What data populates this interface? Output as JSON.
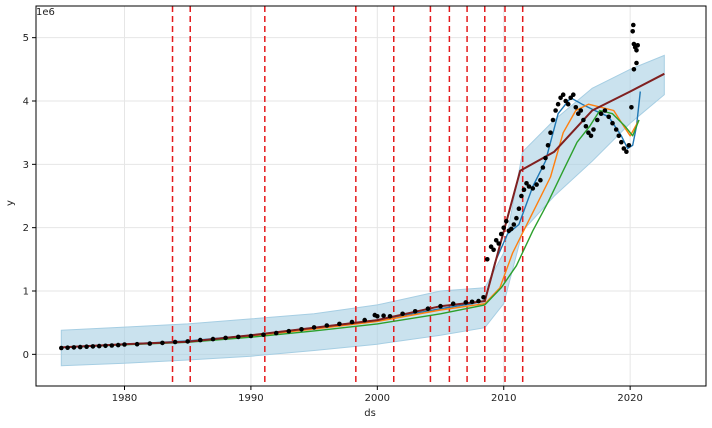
{
  "chart_data": {
    "type": "line",
    "title": "",
    "xlabel": "ds",
    "ylabel": "y",
    "y_offset_label": "1e6",
    "xlim": [
      1973.0,
      2026.0
    ],
    "ylim": [
      -500000,
      5500000
    ],
    "xticks": [
      1980,
      1990,
      2000,
      2010,
      2020
    ],
    "xtick_labels": [
      "1980",
      "1990",
      "2000",
      "2010",
      "2020"
    ],
    "yticks": [
      0,
      1000000,
      2000000,
      3000000,
      4000000,
      5000000
    ],
    "ytick_labels": [
      "0",
      "1",
      "2",
      "3",
      "4",
      "5"
    ],
    "grid": true,
    "changepoints": [
      1983.8,
      1985.2,
      1991.1,
      1998.3,
      2001.3,
      2004.2,
      2005.7,
      2007.1,
      2008.5,
      2010.1,
      2011.5
    ],
    "changepoint_color": "#e41a1c",
    "uncertainty_band": {
      "color": "#a6cee3",
      "x": [
        1975.0,
        1980,
        1985,
        1990,
        1995,
        2000,
        2005,
        2008.5,
        2010,
        2011.5,
        2014,
        2017,
        2020,
        2022.7
      ],
      "lower": [
        -180000,
        -140000,
        -90000,
        -30000,
        60000,
        160000,
        300000,
        420000,
        800000,
        1950000,
        2500000,
        3050000,
        3650000,
        4100000
      ],
      "upper": [
        380000,
        430000,
        480000,
        560000,
        640000,
        780000,
        1000000,
        1050000,
        1600000,
        3200000,
        3700000,
        4200000,
        4500000,
        4720000
      ]
    },
    "series": [
      {
        "color": "#1f77b4",
        "x": [
          1975.0,
          1980,
          1985,
          1990,
          1995,
          2000,
          2005,
          2007.5,
          2008.5,
          2009.3,
          2010.3,
          2011.2,
          2012.3,
          2013.3,
          2014.3,
          2015.3,
          2016.2,
          2017.2,
          2018.3,
          2019.3,
          2019.8,
          2020.2,
          2020.5,
          2020.8
        ],
        "y": [
          110000,
          160000,
          210000,
          300000,
          420000,
          540000,
          720000,
          800000,
          850000,
          1450000,
          1900000,
          2050000,
          2650000,
          3050000,
          3800000,
          4050000,
          3950000,
          3850000,
          3750000,
          3450000,
          3250000,
          3300000,
          3600000,
          4150000
        ]
      },
      {
        "color": "#ff7f0e",
        "x": [
          1975.0,
          1980,
          1985,
          1990,
          1995,
          2000,
          2005,
          2008.5,
          2009.7,
          2010.7,
          2011.7,
          2012.7,
          2013.7,
          2014.7,
          2015.7,
          2016.7,
          2017.7,
          2018.7,
          2019.5,
          2020.0,
          2020.7
        ],
        "y": [
          110000,
          160000,
          200000,
          290000,
          400000,
          520000,
          700000,
          800000,
          1050000,
          1600000,
          2000000,
          2400000,
          2800000,
          3500000,
          3850000,
          3950000,
          3900000,
          3850000,
          3600000,
          3450000,
          3700000
        ]
      },
      {
        "color": "#2ca02c",
        "x": [
          1975.0,
          1980,
          1985,
          1990,
          1995,
          2000,
          2005,
          2008.5,
          2009.8,
          2011.0,
          2012.3,
          2013.5,
          2014.7,
          2015.8,
          2016.8,
          2017.6,
          2018.6,
          2019.6,
          2020.2,
          2020.7
        ],
        "y": [
          110000,
          150000,
          190000,
          270000,
          370000,
          480000,
          640000,
          780000,
          1050000,
          1400000,
          1950000,
          2400000,
          2900000,
          3350000,
          3600000,
          3850000,
          3800000,
          3600000,
          3450000,
          3700000
        ]
      },
      {
        "color": "#d62728",
        "x": [
          1975.0,
          1980,
          1985,
          1990,
          1995,
          2000,
          2005,
          2008.5,
          2011.3,
          2014,
          2017,
          2020,
          2022.7
        ],
        "y": [
          110000,
          160000,
          200000,
          300000,
          420000,
          540000,
          760000,
          840000,
          2900000,
          3200000,
          3850000,
          4150000,
          4430000
        ]
      },
      {
        "color": "#7f2020",
        "x": [
          1975.0,
          1980,
          1985,
          1990,
          1995,
          2000,
          2005,
          2008.5,
          2011.3,
          2014,
          2017,
          2020,
          2022.7
        ],
        "y": [
          110000,
          160000,
          200000,
          300000,
          420000,
          540000,
          760000,
          840000,
          2900000,
          3200000,
          3850000,
          4150000,
          4430000
        ]
      }
    ],
    "observed_points": {
      "color": "#000000",
      "x": [
        1975.0,
        1975.5,
        1976.0,
        1976.5,
        1977.0,
        1977.5,
        1978.0,
        1978.5,
        1979.0,
        1979.5,
        1980.0,
        1981.0,
        1982.0,
        1983.0,
        1984.0,
        1985.0,
        1986.0,
        1987.0,
        1988.0,
        1989.0,
        1990.0,
        1991.0,
        1992.0,
        1993.0,
        1994.0,
        1995.0,
        1996.0,
        1997.0,
        1998.0,
        1999.0,
        1999.8,
        2000.0,
        2000.5,
        2001.0,
        2002.0,
        2003.0,
        2004.0,
        2005.0,
        2006.0,
        2007.0,
        2007.5,
        2008.0,
        2008.4,
        2008.7,
        2009.0,
        2009.2,
        2009.4,
        2009.6,
        2009.8,
        2010.0,
        2010.2,
        2010.4,
        2010.6,
        2010.8,
        2011.0,
        2011.2,
        2011.4,
        2011.6,
        2011.8,
        2012.0,
        2012.3,
        2012.6,
        2012.9,
        2013.1,
        2013.3,
        2013.5,
        2013.7,
        2013.9,
        2014.1,
        2014.3,
        2014.5,
        2014.7,
        2014.9,
        2015.1,
        2015.3,
        2015.5,
        2015.7,
        2015.9,
        2016.1,
        2016.3,
        2016.5,
        2016.7,
        2016.9,
        2017.1,
        2017.4,
        2017.7,
        2018.0,
        2018.3,
        2018.6,
        2018.9,
        2019.1,
        2019.3,
        2019.5,
        2019.7,
        2019.9,
        2020.1,
        2020.3,
        2020.5,
        2020.2,
        2020.25,
        2020.3,
        2020.4,
        2020.5,
        2020.6
      ],
      "y": [
        100000,
        105000,
        110000,
        115000,
        120000,
        125000,
        130000,
        135000,
        140000,
        145000,
        155000,
        160000,
        170000,
        180000,
        195000,
        205000,
        225000,
        240000,
        260000,
        275000,
        290000,
        310000,
        335000,
        365000,
        395000,
        425000,
        455000,
        480000,
        510000,
        540000,
        620000,
        600000,
        610000,
        600000,
        640000,
        680000,
        720000,
        760000,
        800000,
        820000,
        830000,
        840000,
        900000,
        1500000,
        1700000,
        1650000,
        1800000,
        1750000,
        1900000,
        2000000,
        2100000,
        1950000,
        1980000,
        2050000,
        2150000,
        2300000,
        2500000,
        2600000,
        2700000,
        2650000,
        2620000,
        2680000,
        2750000,
        2950000,
        3100000,
        3300000,
        3500000,
        3700000,
        3850000,
        3950000,
        4050000,
        4100000,
        4000000,
        3950000,
        4050000,
        4100000,
        3900000,
        3800000,
        3850000,
        3700000,
        3600000,
        3500000,
        3450000,
        3550000,
        3700000,
        3800000,
        3850000,
        3750000,
        3650000,
        3550000,
        3450000,
        3350000,
        3250000,
        3200000,
        3300000,
        3900000,
        4500000,
        4800000,
        5100000,
        5200000,
        4900000,
        4850000,
        4600000,
        4880000
      ]
    }
  }
}
